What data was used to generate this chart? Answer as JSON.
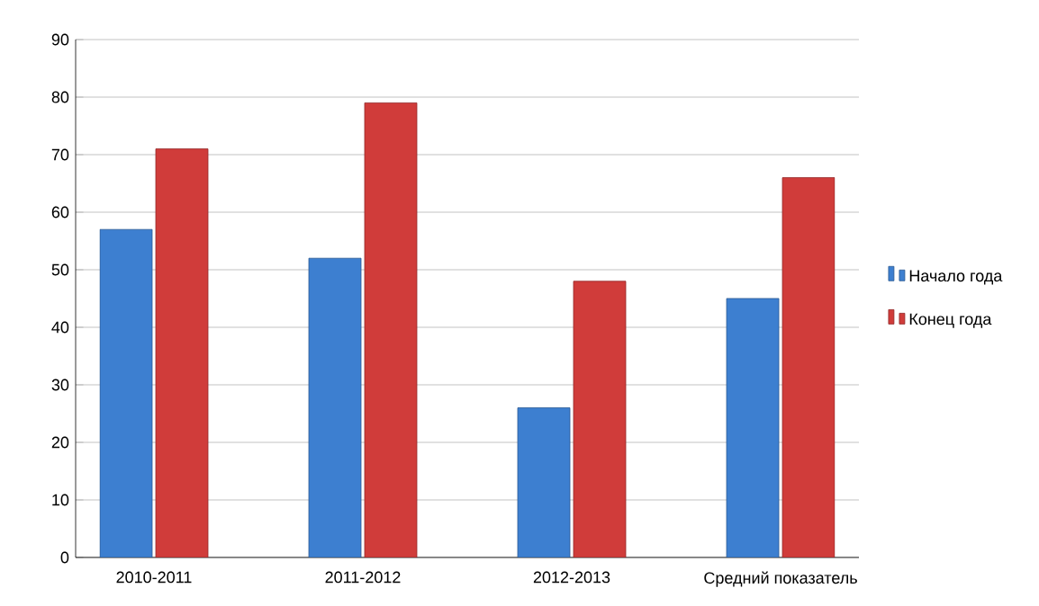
{
  "chart_data": {
    "type": "bar",
    "categories": [
      "2010-2011",
      "2011-2012",
      "2012-2013",
      "Средний показатель"
    ],
    "series": [
      {
        "name": "Начало года",
        "color": "#3d7fd0",
        "values": [
          57,
          52,
          26,
          45
        ]
      },
      {
        "name": "Конец года",
        "color": "#d03c3a",
        "values": [
          71,
          79,
          48,
          66
        ]
      }
    ],
    "ylim": [
      0,
      90
    ],
    "yticks": [
      0,
      10,
      20,
      30,
      40,
      50,
      60,
      70,
      80,
      90
    ],
    "grid": "y",
    "legend": "right"
  }
}
